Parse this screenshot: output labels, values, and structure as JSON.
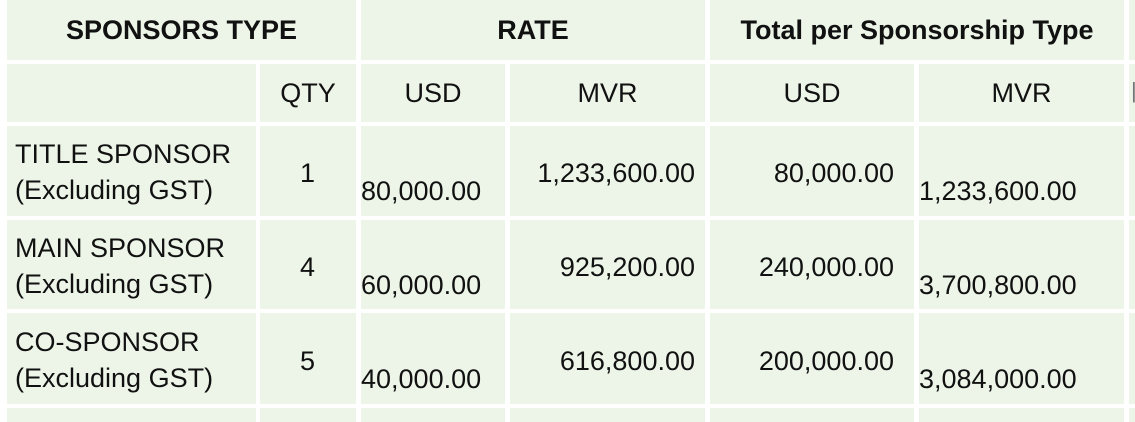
{
  "table": {
    "headers": {
      "sponsors_type": "SPONSORS TYPE",
      "rate": "RATE",
      "total_per_type": "Total per Sponsorship Type"
    },
    "subheaders": {
      "qty": "QTY",
      "rate_usd": "USD",
      "rate_mvr": "MVR",
      "total_usd": "USD",
      "total_mvr": "MVR"
    },
    "rows": [
      {
        "type_line1": "TITLE SPONSOR",
        "type_line2": "(Excluding GST)",
        "qty": "1",
        "rate_usd": "80,000.00",
        "rate_mvr": "1,233,600.00",
        "total_usd": "80,000.00",
        "total_mvr": "1,233,600.00"
      },
      {
        "type_line1": "MAIN SPONSOR",
        "type_line2": "(Excluding GST)",
        "qty": "4",
        "rate_usd": "60,000.00",
        "rate_mvr": "925,200.00",
        "total_usd": "240,000.00",
        "total_mvr": "3,700,800.00"
      },
      {
        "type_line1": "CO-SPONSOR",
        "type_line2": "(Excluding GST)",
        "qty": "5",
        "rate_usd": "40,000.00",
        "rate_mvr": "616,800.00",
        "total_usd": "200,000.00",
        "total_mvr": "3,084,000.00"
      }
    ]
  }
}
